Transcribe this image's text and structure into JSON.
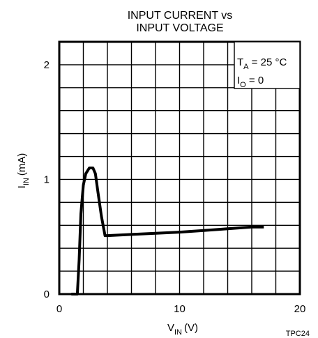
{
  "chart_data": {
    "type": "line",
    "title_lines": [
      "INPUT CURRENT vs",
      "INPUT VOLTAGE"
    ],
    "xlabel": {
      "main": "V",
      "sub": "IN",
      "unit": "(V)"
    },
    "ylabel": {
      "main": "I",
      "sub": "IN",
      "unit": "(mA)"
    },
    "xlim": [
      0,
      20
    ],
    "ylim": [
      0,
      2.2
    ],
    "x_ticks": [
      {
        "value": 0,
        "label": "0"
      },
      {
        "value": 10,
        "label": "10"
      },
      {
        "value": 20,
        "label": "20"
      }
    ],
    "y_ticks": [
      {
        "value": 0,
        "label": "0"
      },
      {
        "value": 1,
        "label": "1"
      },
      {
        "value": 2,
        "label": "2"
      }
    ],
    "grid": true,
    "grid_x_step": 2,
    "grid_y_step": 0.2,
    "annotations": [
      {
        "main": "T",
        "sub": "A",
        "rest": " = 25 °C"
      },
      {
        "main": "I",
        "sub": "O",
        "rest": " = 0"
      }
    ],
    "series": [
      {
        "x": [
          1.5,
          1.65,
          1.8,
          2.0,
          2.2,
          2.5,
          2.8,
          3.0,
          3.2,
          3.5,
          3.8,
          4.0,
          6,
          8,
          10,
          12,
          14,
          16,
          17
        ],
        "y": [
          0.0,
          0.3,
          0.7,
          0.95,
          1.05,
          1.1,
          1.1,
          1.05,
          0.9,
          0.68,
          0.51,
          0.51,
          0.52,
          0.53,
          0.54,
          0.555,
          0.57,
          0.585,
          0.585
        ]
      }
    ],
    "figure_code": "TPC24"
  }
}
